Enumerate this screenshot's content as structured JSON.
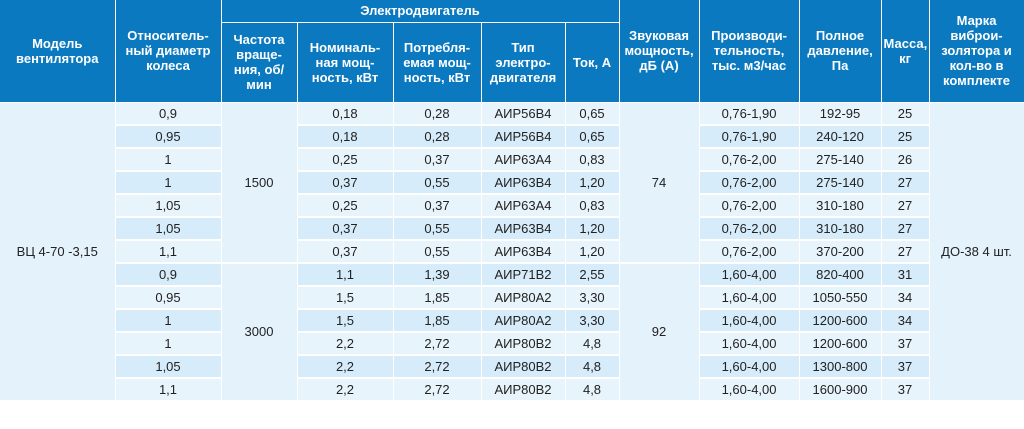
{
  "headers": {
    "model": "Модель вентилятора",
    "diameter": "Относитель-ный диаметр колеса",
    "motor_group": "Электродвигатель",
    "speed": "Частота враще-ния, об/мин",
    "nominal_power": "Номиналь-ная мощ-ность, кВт",
    "consumed_power": "Потребля-емая мощ-ность, кВт",
    "motor_type": "Тип электро-двигателя",
    "current": "Ток, А",
    "sound": "Звуковая мощность, дБ (А)",
    "capacity": "Производи-тельность, тыс. м3/час",
    "pressure": "Полное давление, Па",
    "mass": "Масса, кг",
    "isolator": "Марка виброи-золятора и кол-во в комплекте"
  },
  "model": "ВЦ 4-70 -3,15",
  "isolator": "ДО-38 4 шт.",
  "groups": [
    {
      "speed": "1500",
      "sound": "74"
    },
    {
      "speed": "3000",
      "sound": "92"
    }
  ],
  "rows": [
    [
      "0,9",
      "0,18",
      "0,28",
      "АИР56В4",
      "0,65",
      "0,76-1,90",
      "192-95",
      "25"
    ],
    [
      "0,95",
      "0,18",
      "0,28",
      "АИР56В4",
      "0,65",
      "0,76-1,90",
      "240-120",
      "25"
    ],
    [
      "1",
      "0,25",
      "0,37",
      "АИР63А4",
      "0,83",
      "0,76-2,00",
      "275-140",
      "26"
    ],
    [
      "1",
      "0,37",
      "0,55",
      "АИР63В4",
      "1,20",
      "0,76-2,00",
      "275-140",
      "27"
    ],
    [
      "1,05",
      "0,25",
      "0,37",
      "АИР63А4",
      "0,83",
      "0,76-2,00",
      "310-180",
      "27"
    ],
    [
      "1,05",
      "0,37",
      "0,55",
      "АИР63В4",
      "1,20",
      "0,76-2,00",
      "310-180",
      "27"
    ],
    [
      "1,1",
      "0,37",
      "0,55",
      "АИР63В4",
      "1,20",
      "0,76-2,00",
      "370-200",
      "27"
    ],
    [
      "0,9",
      "1,1",
      "1,39",
      "АИР71В2",
      "2,55",
      "1,60-4,00",
      "820-400",
      "31"
    ],
    [
      "0,95",
      "1,5",
      "1,85",
      "АИР80А2",
      "3,30",
      "1,60-4,00",
      "1050-550",
      "34"
    ],
    [
      "1",
      "1,5",
      "1,85",
      "АИР80А2",
      "3,30",
      "1,60-4,00",
      "1200-600",
      "34"
    ],
    [
      "1",
      "2,2",
      "2,72",
      "АИР80В2",
      "4,8",
      "1,60-4,00",
      "1200-600",
      "37"
    ],
    [
      "1,05",
      "2,2",
      "2,72",
      "АИР80В2",
      "4,8",
      "1,60-4,00",
      "1300-800",
      "37"
    ],
    [
      "1,1",
      "2,2",
      "2,72",
      "АИР80В2",
      "4,8",
      "1,60-4,00",
      "1600-900",
      "37"
    ]
  ],
  "colors": {
    "header_bg": "#0a79c0",
    "cell_bg": "#d7ecfa",
    "cell_alt": "#e8f4fc"
  }
}
